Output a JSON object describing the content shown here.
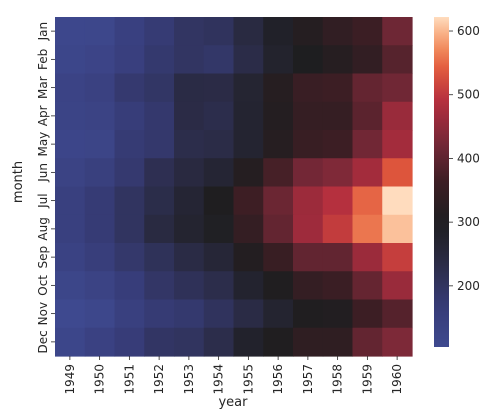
{
  "chart_data": {
    "type": "heatmap",
    "xlabel": "year",
    "ylabel": "month",
    "x_categories": [
      "1949",
      "1950",
      "1951",
      "1952",
      "1953",
      "1954",
      "1955",
      "1956",
      "1957",
      "1958",
      "1959",
      "1960"
    ],
    "y_categories": [
      "Jan",
      "Feb",
      "Mar",
      "Apr",
      "May",
      "Jun",
      "Jul",
      "Aug",
      "Sep",
      "Oct",
      "Nov",
      "Dec"
    ],
    "y_tick_labels_shown": [
      "Jan",
      "Feb",
      "Mar",
      "Apr",
      "May",
      "Jun",
      "Jul",
      "Aug",
      "Sep",
      "Oct",
      "Nov",
      "Dec"
    ],
    "values": [
      [
        112,
        115,
        145,
        171,
        196,
        204,
        242,
        284,
        315,
        340,
        360,
        417
      ],
      [
        118,
        126,
        150,
        180,
        196,
        188,
        233,
        277,
        301,
        318,
        342,
        391
      ],
      [
        132,
        141,
        178,
        193,
        236,
        235,
        267,
        317,
        356,
        362,
        406,
        419
      ],
      [
        129,
        135,
        163,
        181,
        235,
        227,
        269,
        313,
        348,
        348,
        396,
        461
      ],
      [
        121,
        125,
        172,
        183,
        229,
        234,
        270,
        318,
        355,
        363,
        420,
        472
      ],
      [
        135,
        149,
        178,
        218,
        243,
        264,
        315,
        374,
        422,
        435,
        472,
        535
      ],
      [
        148,
        170,
        199,
        230,
        264,
        302,
        364,
        413,
        465,
        491,
        548,
        622
      ],
      [
        148,
        170,
        199,
        242,
        272,
        293,
        347,
        405,
        467,
        505,
        559,
        606
      ],
      [
        136,
        158,
        184,
        209,
        237,
        259,
        312,
        355,
        404,
        404,
        463,
        508
      ],
      [
        119,
        133,
        162,
        191,
        211,
        229,
        274,
        306,
        347,
        359,
        407,
        461
      ],
      [
        104,
        114,
        146,
        172,
        180,
        203,
        237,
        271,
        305,
        310,
        362,
        390
      ],
      [
        118,
        140,
        166,
        194,
        201,
        229,
        278,
        306,
        336,
        337,
        405,
        432
      ]
    ],
    "vmin": 104,
    "vmax": 622,
    "colormap": "icefire-like diverging (blue-dark-red-orange)",
    "colorbar_ticks": [
      200,
      300,
      400,
      500,
      600
    ]
  }
}
